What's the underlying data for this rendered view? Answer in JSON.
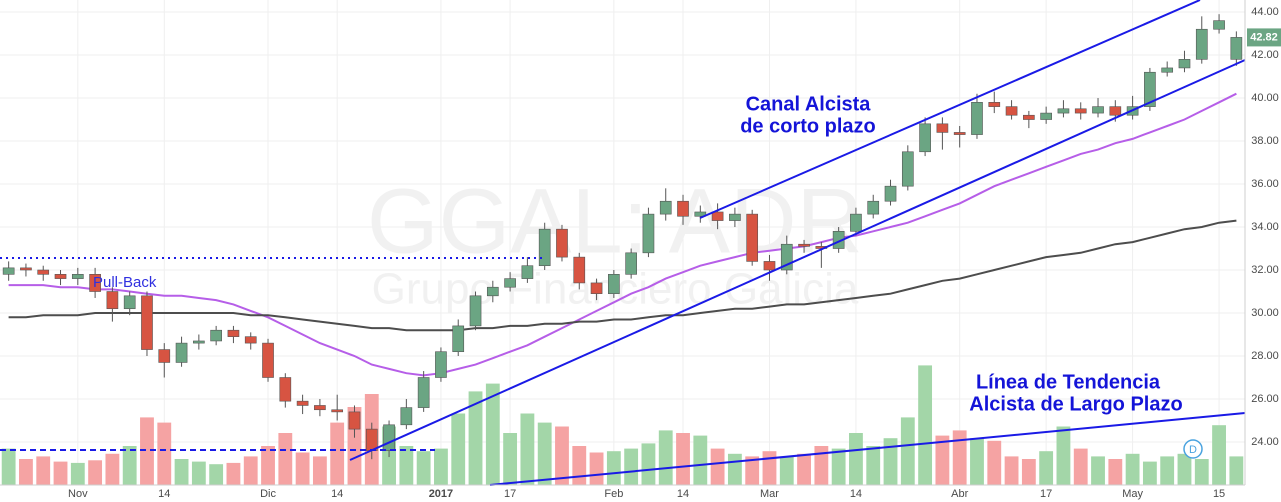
{
  "chart_data": {
    "type": "candlestick",
    "watermark": {
      "symbol": "GGAL: ADR",
      "company": "Grupo Financiero Galicia"
    },
    "annotations": {
      "pullback": "Pull-Back",
      "channel": [
        "Canal Alcista",
        "de corto plazo"
      ],
      "trend": [
        "Línea de Tendencia",
        "Alcista de Largo Plazo"
      ],
      "marker": "D"
    },
    "categories": [
      null,
      null,
      null,
      null,
      "Nov",
      null,
      null,
      null,
      null,
      "14",
      null,
      null,
      null,
      null,
      null,
      "Dic",
      null,
      null,
      null,
      "14",
      null,
      null,
      null,
      null,
      null,
      "2017",
      null,
      null,
      null,
      "17",
      null,
      null,
      null,
      null,
      null,
      "Feb",
      null,
      null,
      null,
      "14",
      null,
      null,
      null,
      null,
      "Mar",
      null,
      null,
      null,
      null,
      "14",
      null,
      null,
      null,
      null,
      null,
      "Abr",
      null,
      null,
      null,
      null,
      "17",
      null,
      null,
      null,
      null,
      "May",
      null,
      null,
      null,
      null,
      "15",
      null
    ],
    "open": [
      31.8,
      32.1,
      32.0,
      31.8,
      31.6,
      31.8,
      31.0,
      30.2,
      30.8,
      28.3,
      27.7,
      28.6,
      28.7,
      29.2,
      28.9,
      28.6,
      27.0,
      25.9,
      25.7,
      25.5,
      25.4,
      24.6,
      23.6,
      24.8,
      25.6,
      27.0,
      28.2,
      29.4,
      30.8,
      31.2,
      31.6,
      32.2,
      33.9,
      32.6,
      31.4,
      30.9,
      31.8,
      32.8,
      34.6,
      35.2,
      34.5,
      34.7,
      34.3,
      34.6,
      32.4,
      32.0,
      33.2,
      33.1,
      33.0,
      33.8,
      34.6,
      35.2,
      35.9,
      37.5,
      38.8,
      38.4,
      38.3,
      39.8,
      39.6,
      39.2,
      39.0,
      39.3,
      39.5,
      39.3,
      39.6,
      39.2,
      39.6,
      41.2,
      41.4,
      41.8,
      43.2,
      41.8
    ],
    "high": [
      32.4,
      32.3,
      32.2,
      32.0,
      32.1,
      32.1,
      31.2,
      31.0,
      31.0,
      28.6,
      28.9,
      29.0,
      29.4,
      29.4,
      29.1,
      28.8,
      27.2,
      26.2,
      26.0,
      26.2,
      25.7,
      24.9,
      25.0,
      26.0,
      27.3,
      28.4,
      29.7,
      31.0,
      31.5,
      31.9,
      32.6,
      34.2,
      34.1,
      32.8,
      31.6,
      32.0,
      33.0,
      34.9,
      35.8,
      35.5,
      35.0,
      35.1,
      34.9,
      34.8,
      32.7,
      33.6,
      33.4,
      33.3,
      34.0,
      34.9,
      35.5,
      36.2,
      37.8,
      39.1,
      39.1,
      38.7,
      40.2,
      40.3,
      39.9,
      39.4,
      39.6,
      39.9,
      39.8,
      40.0,
      39.9,
      40.1,
      41.4,
      41.7,
      42.2,
      43.8,
      43.9,
      43.1
    ],
    "low": [
      31.5,
      31.7,
      31.5,
      31.3,
      31.3,
      30.7,
      29.6,
      29.9,
      28.0,
      27.0,
      27.5,
      28.3,
      28.5,
      28.6,
      28.3,
      26.8,
      25.6,
      25.3,
      25.2,
      25.0,
      24.2,
      23.2,
      23.3,
      24.6,
      25.4,
      26.8,
      28.0,
      29.2,
      30.5,
      31.0,
      31.4,
      32.0,
      32.4,
      31.1,
      30.6,
      30.7,
      31.6,
      32.6,
      34.3,
      34.1,
      34.2,
      33.9,
      34.0,
      32.2,
      31.5,
      31.8,
      32.8,
      32.1,
      32.8,
      33.6,
      34.4,
      35.0,
      35.7,
      37.3,
      37.6,
      37.7,
      38.1,
      39.3,
      39.0,
      38.6,
      38.8,
      39.1,
      39.0,
      39.1,
      38.9,
      39.0,
      39.4,
      41.0,
      41.2,
      41.6,
      43.0,
      41.5
    ],
    "close": [
      32.1,
      32.0,
      31.8,
      31.6,
      31.8,
      31.0,
      30.2,
      30.8,
      28.3,
      27.7,
      28.6,
      28.7,
      29.2,
      28.9,
      28.6,
      27.0,
      25.9,
      25.7,
      25.5,
      25.4,
      24.6,
      23.6,
      24.8,
      25.6,
      27.0,
      28.2,
      29.4,
      30.8,
      31.2,
      31.6,
      32.2,
      33.9,
      32.6,
      31.4,
      30.9,
      31.8,
      32.8,
      34.6,
      35.2,
      34.5,
      34.7,
      34.3,
      34.6,
      32.4,
      32.0,
      33.2,
      33.1,
      33.0,
      33.8,
      34.6,
      35.2,
      35.9,
      37.5,
      38.8,
      38.4,
      38.3,
      39.8,
      39.6,
      39.2,
      39.0,
      39.3,
      39.5,
      39.3,
      39.6,
      39.2,
      39.6,
      41.2,
      41.4,
      41.8,
      43.2,
      43.6,
      42.82
    ],
    "volume": [
      28,
      20,
      22,
      18,
      17,
      19,
      24,
      30,
      52,
      48,
      20,
      18,
      16,
      17,
      22,
      30,
      40,
      25,
      22,
      48,
      60,
      70,
      45,
      30,
      26,
      28,
      55,
      72,
      78,
      40,
      55,
      48,
      45,
      30,
      25,
      26,
      28,
      32,
      42,
      40,
      38,
      28,
      24,
      22,
      26,
      22,
      24,
      30,
      28,
      40,
      30,
      36,
      52,
      92,
      38,
      42,
      36,
      34,
      22,
      20,
      26,
      45,
      28,
      22,
      20,
      24,
      18,
      22,
      24,
      20,
      46,
      22
    ],
    "series": [
      {
        "color": "#b65ee8",
        "values": [
          31.3,
          31.3,
          31.3,
          31.2,
          31.2,
          31.1,
          31.1,
          31.0,
          30.9,
          30.8,
          30.8,
          30.7,
          30.6,
          30.4,
          30.1,
          29.8,
          29.4,
          29.0,
          28.6,
          28.3,
          28.0,
          27.6,
          27.4,
          27.2,
          27.1,
          27.2,
          27.4,
          27.6,
          27.9,
          28.2,
          28.5,
          28.9,
          29.3,
          29.7,
          30.1,
          30.5,
          30.9,
          31.2,
          31.6,
          31.9,
          32.2,
          32.4,
          32.6,
          32.8,
          32.9,
          33.0,
          33.1,
          33.3,
          33.5,
          33.6,
          33.8,
          34.0,
          34.2,
          34.5,
          34.8,
          35.1,
          35.5,
          35.9,
          36.2,
          36.5,
          36.8,
          37.1,
          37.4,
          37.6,
          37.9,
          38.1,
          38.4,
          38.7,
          39.0,
          39.4,
          39.8,
          40.2
        ]
      },
      {
        "color": "#4d4d4d",
        "values": [
          29.8,
          29.8,
          29.9,
          29.9,
          29.9,
          30.0,
          30.0,
          30.0,
          30.0,
          30.0,
          30.0,
          30.0,
          30.0,
          30.0,
          29.9,
          29.9,
          29.8,
          29.7,
          29.6,
          29.5,
          29.4,
          29.3,
          29.3,
          29.2,
          29.2,
          29.2,
          29.2,
          29.3,
          29.3,
          29.4,
          29.4,
          29.5,
          29.5,
          29.6,
          29.6,
          29.7,
          29.7,
          29.8,
          29.9,
          29.9,
          30.0,
          30.1,
          30.2,
          30.2,
          30.3,
          30.4,
          30.4,
          30.5,
          30.6,
          30.7,
          30.8,
          30.9,
          31.1,
          31.3,
          31.5,
          31.6,
          31.8,
          32.0,
          32.2,
          32.4,
          32.6,
          32.7,
          32.8,
          33.0,
          33.2,
          33.3,
          33.5,
          33.7,
          33.9,
          34.0,
          34.2,
          34.3
        ]
      }
    ],
    "up_color": "#6ba583",
    "down_color": "#d75442",
    "volume_up_color": "#a3d6a8",
    "volume_down_color": "#f5a3a3",
    "last_price": 42.82,
    "ylim": [
      22,
      44.56
    ],
    "yticks": [
      {
        "value": 24,
        "label": "24.00"
      },
      {
        "value": 26,
        "label": "26.00"
      },
      {
        "value": 28,
        "label": "28.00"
      },
      {
        "value": 30,
        "label": "30.00"
      },
      {
        "value": 32,
        "label": "32.00"
      },
      {
        "value": 34,
        "label": "34.00"
      },
      {
        "value": 36,
        "label": "36.00"
      },
      {
        "value": 38,
        "label": "38.00"
      },
      {
        "value": 40,
        "label": "40.00"
      },
      {
        "value": 42,
        "label": "42.00"
      },
      {
        "value": 44,
        "label": "44.00"
      }
    ],
    "y2lim": [
      0,
      100
    ],
    "grid": true
  }
}
